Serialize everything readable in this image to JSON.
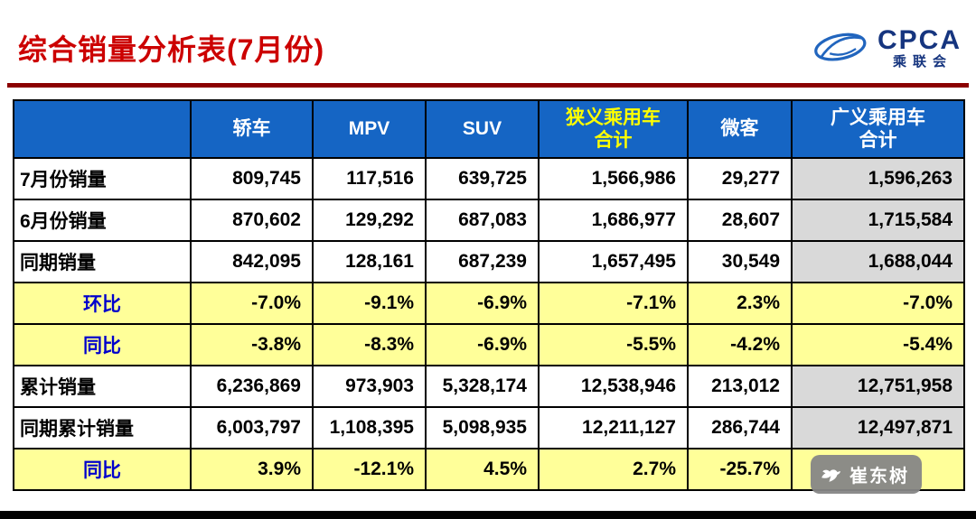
{
  "slide": {
    "title": "综合销量分析表(7月份)",
    "logo": {
      "name": "CPCA",
      "subname": "乘联会"
    },
    "watermark": "崔东树"
  },
  "chart_data": {
    "type": "table",
    "title": "综合销量分析表(7月份)",
    "columns": [
      {
        "label": "",
        "highlight": false
      },
      {
        "label": "轿车",
        "highlight": false
      },
      {
        "label": "MPV",
        "highlight": false
      },
      {
        "label": "SUV",
        "highlight": false
      },
      {
        "label": "狭义乘用车\n合计",
        "highlight": true
      },
      {
        "label": "微客",
        "highlight": false
      },
      {
        "label": "广义乘用车\n合计",
        "highlight": false
      }
    ],
    "rows": [
      {
        "label": "7月份销量",
        "kind": "data",
        "values": [
          "809,745",
          "117,516",
          "639,725",
          "1,566,986",
          "29,277",
          "1,596,263"
        ]
      },
      {
        "label": "6月份销量",
        "kind": "data",
        "values": [
          "870,602",
          "129,292",
          "687,083",
          "1,686,977",
          "28,607",
          "1,715,584"
        ]
      },
      {
        "label": "同期销量",
        "kind": "data",
        "values": [
          "842,095",
          "128,161",
          "687,239",
          "1,657,495",
          "30,549",
          "1,688,044"
        ]
      },
      {
        "label": "环比",
        "kind": "pct",
        "values": [
          "-7.0%",
          "-9.1%",
          "-6.9%",
          "-7.1%",
          "2.3%",
          "-7.0%"
        ]
      },
      {
        "label": "同比",
        "kind": "pct",
        "values": [
          "-3.8%",
          "-8.3%",
          "-6.9%",
          "-5.5%",
          "-4.2%",
          "-5.4%"
        ]
      },
      {
        "label": "累计销量",
        "kind": "data",
        "values": [
          "6,236,869",
          "973,903",
          "5,328,174",
          "12,538,946",
          "213,012",
          "12,751,958"
        ]
      },
      {
        "label": "同期累计销量",
        "kind": "data",
        "values": [
          "6,003,797",
          "1,108,395",
          "5,098,935",
          "12,211,127",
          "286,744",
          "12,497,871"
        ]
      },
      {
        "label": "同比",
        "kind": "pct",
        "values": [
          "3.9%",
          "-12.1%",
          "4.5%",
          "2.7%",
          "-25.7%",
          ""
        ]
      }
    ]
  },
  "colors": {
    "title_red": "#CC0000",
    "divider_maroon": "#8B0000",
    "header_blue": "#1565C4",
    "header_highlight_yellow": "#FFFF00",
    "pct_row_yellow": "#FFFF99",
    "pct_label_blue": "#0000CC",
    "last_col_gray": "#D9D9D9"
  }
}
